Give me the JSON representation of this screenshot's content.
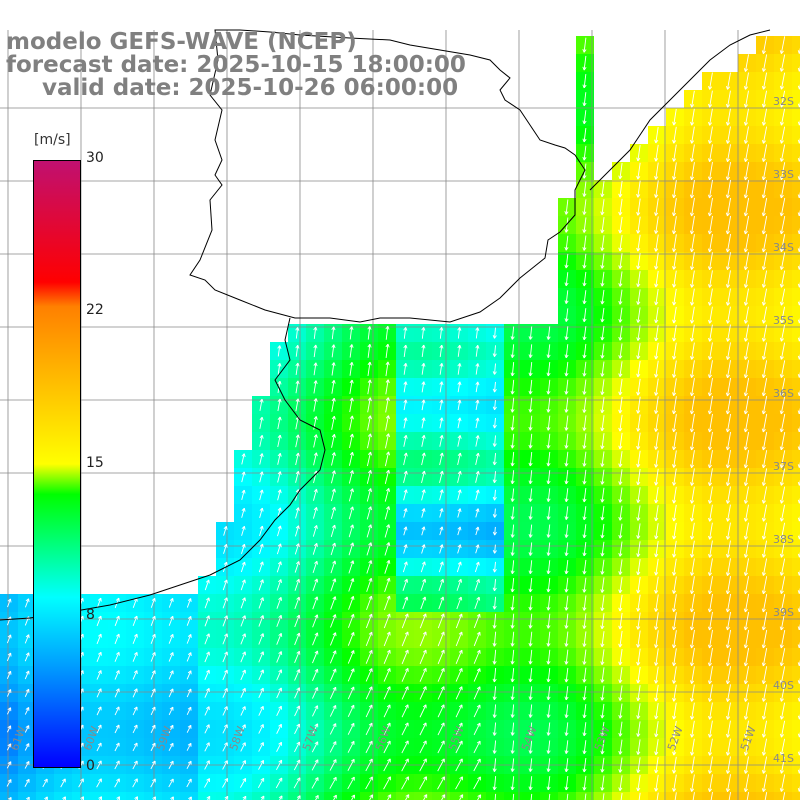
{
  "title": {
    "line1": "modelo GEFS-WAVE (NCEP)",
    "line2": "forecast date: 2025-10-15 18:00:00",
    "line3": "valid date: 2025-10-26 06:00:00"
  },
  "colorbar": {
    "unit": "[m/s]",
    "ticks": [
      "30",
      "22",
      "15",
      "8",
      "0"
    ],
    "colors": [
      "#0000ff",
      "#00a0ff",
      "#00ffff",
      "#00ff00",
      "#ffff00",
      "#ff8000",
      "#ff0000",
      "#c01070"
    ]
  },
  "axes": {
    "lat_labels": [
      "32S",
      "33S",
      "34S",
      "35S",
      "36S",
      "37S",
      "38S",
      "39S",
      "40S",
      "41S"
    ],
    "lon_labels": [
      "61W",
      "60W",
      "59W",
      "58W",
      "57W",
      "56W",
      "55W",
      "54W",
      "53W",
      "52W",
      "51W"
    ]
  },
  "map": {
    "region": "Rio de la Plata / South Atlantic",
    "grid": true,
    "field": "wind speed",
    "arrow_color": "#ffffff",
    "coast_color": "#000000"
  }
}
